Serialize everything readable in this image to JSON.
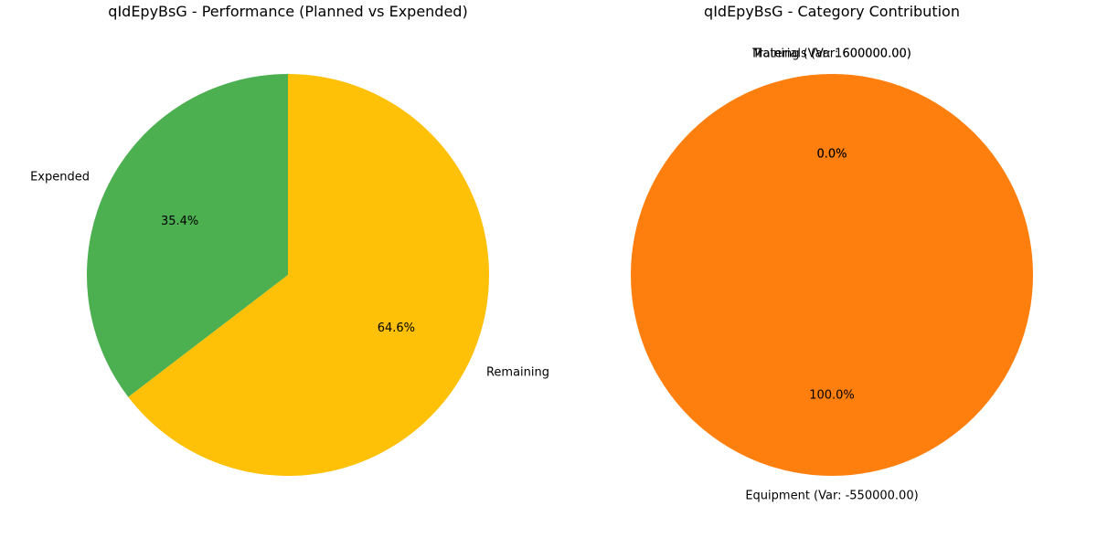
{
  "chart_data": [
    {
      "type": "pie",
      "title": "qIdEpyBsG - Performance (Planned vs Expended)",
      "slices": [
        {
          "label": "Expended",
          "percent": 35.4,
          "percent_label": "35.4%",
          "color": "#4caf50"
        },
        {
          "label": "Remaining",
          "percent": 64.6,
          "percent_label": "64.6%",
          "color": "#ffc107"
        }
      ],
      "start_angle_deg": 90,
      "direction": "counterclockwise"
    },
    {
      "type": "pie",
      "title": "qIdEpyBsG - Category Contribution",
      "slices": [
        {
          "label": "Training (Var: 1600000.00)",
          "percent": 0.0,
          "percent_label": "0.0%",
          "color": "#1f77b4"
        },
        {
          "label": "Materials (Var: 600000.00)",
          "percent": 0.0,
          "percent_label": "0.0%",
          "color": "#2ca02c"
        },
        {
          "label": "Equipment (Var: -550000.00)",
          "percent": 100.0,
          "percent_label": "100.0%",
          "color": "#ff7f0e"
        }
      ],
      "start_angle_deg": 90,
      "direction": "counterclockwise"
    }
  ]
}
